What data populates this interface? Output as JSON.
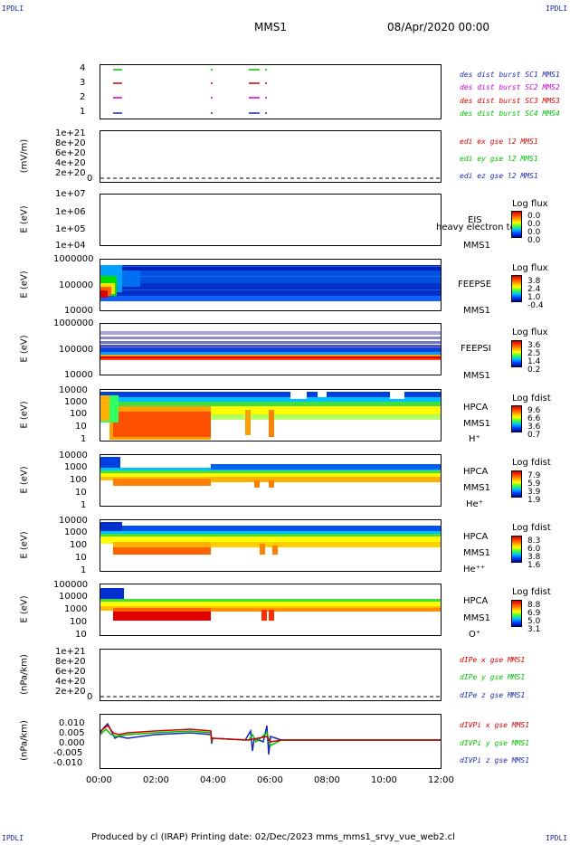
{
  "corners": {
    "label": "IPDLI"
  },
  "header": {
    "spacecraft": "MMS1",
    "date": "08/Apr/2020 00:00"
  },
  "footer": {
    "text": "Produced by cl (IRAP)   Printing date: 02/Dec/2023   mms_mms1_srvy_vue_web2.cl"
  },
  "colors": {
    "blue": "#1a2ab0",
    "magenta": "#d000d0",
    "red": "#d00000",
    "green": "#00c000",
    "navy": "#000080"
  },
  "panels": {
    "p1": {
      "yticks": [
        "4",
        "3",
        "2",
        "1"
      ],
      "legend": [
        "des dist burst SC1 MMS1",
        "des dist burst SC2 MMS2",
        "des dist burst SC3 MMS3",
        "des dist burst SC4 MMS4"
      ]
    },
    "p2": {
      "ylabel": "(mV/m)",
      "yticks": [
        "1e+21",
        "8e+20",
        "6e+20",
        "4e+20",
        "2e+20",
        "0"
      ],
      "legend": [
        "edi ex gse l2 MMS1",
        "edi ey gse l2 MMS1",
        "edi ez gse l2 MMS1"
      ]
    },
    "p3": {
      "ylabel": "E (eV)",
      "yticks": [
        "1e+07",
        "1e+06",
        "1e+05",
        "1e+04"
      ],
      "right": [
        "EIS",
        "MMS1"
      ],
      "overlay": "heavy electron tof",
      "cb_title": "Log flux",
      "cb_values": [
        "0.0",
        "0.0",
        "0.0",
        "0.0"
      ]
    },
    "p4": {
      "ylabel": "E (eV)",
      "yticks": [
        "1000000",
        "100000",
        "10000"
      ],
      "right": [
        "FEEPSE",
        "MMS1"
      ],
      "cb_title": "Log flux",
      "cb_values": [
        "3.8",
        "2.4",
        "1.0",
        "-0.4"
      ]
    },
    "p5": {
      "ylabel": "E (eV)",
      "yticks": [
        "1000000",
        "100000",
        "10000"
      ],
      "right": [
        "FEEPSI",
        "MMS1"
      ],
      "cb_title": "Log flux",
      "cb_values": [
        "3.6",
        "2.5",
        "1.4",
        "0.2"
      ]
    },
    "p6": {
      "ylabel": "E (eV)",
      "yticks": [
        "10000",
        "1000",
        "100",
        "10",
        "1"
      ],
      "right": [
        "HPCA",
        "MMS1",
        "H⁺"
      ],
      "cb_title": "Log fdist",
      "cb_values": [
        "9.6",
        "6.6",
        "3.6",
        "0.7"
      ]
    },
    "p7": {
      "ylabel": "E (eV)",
      "yticks": [
        "10000",
        "1000",
        "100",
        "10",
        "1"
      ],
      "right": [
        "HPCA",
        "MMS1",
        "He⁺"
      ],
      "cb_title": "Log fdist",
      "cb_values": [
        "7.9",
        "5.9",
        "3.9",
        "1.9"
      ]
    },
    "p8": {
      "ylabel": "E (eV)",
      "yticks": [
        "10000",
        "1000",
        "100",
        "10",
        "1"
      ],
      "right": [
        "HPCA",
        "MMS1",
        "He⁺⁺"
      ],
      "cb_title": "Log fdist",
      "cb_values": [
        "8.3",
        "6.0",
        "3.8",
        "1.6"
      ]
    },
    "p9": {
      "ylabel": "E (eV)",
      "yticks": [
        "100000",
        "10000",
        "1000",
        "100",
        "10"
      ],
      "right": [
        "HPCA",
        "MMS1",
        "O⁺"
      ],
      "cb_title": "Log fdist",
      "cb_values": [
        "8.8",
        "6.9",
        "5.0",
        "3.1"
      ]
    },
    "p10": {
      "ylabel": "(nPa/km)",
      "yticks": [
        "1e+21",
        "8e+20",
        "6e+20",
        "4e+20",
        "2e+20",
        "0"
      ],
      "legend": [
        "dIPe x gse MMS1",
        "dIPe y gse MMS1",
        "dIPe z gse MMS1"
      ]
    },
    "p11": {
      "ylabel": "(nPa/km)",
      "yticks": [
        "0.010",
        "0.005",
        "0.000",
        "-0.005",
        "-0.010"
      ],
      "legend": [
        "dIVPi x gse MMS1",
        "dIVPi y gse MMS1",
        "dIVPi z gse MMS1"
      ]
    }
  },
  "xaxis": {
    "ticks": [
      "00:00",
      "02:00",
      "04:00",
      "06:00",
      "08:00",
      "10:00",
      "12:00"
    ]
  },
  "chart_data": {
    "type": "heatmap",
    "title": "MMS1 08/Apr/2020 00:00",
    "x_range": [
      "00:00",
      "12:00"
    ],
    "panels": [
      {
        "id": "burst",
        "type": "line",
        "yticks": [
          1,
          2,
          3,
          4
        ]
      },
      {
        "id": "edi_e",
        "type": "line",
        "ylabel": "(mV/m)",
        "ylim": [
          0,
          1e+21
        ],
        "values_y": 0
      },
      {
        "id": "eis",
        "type": "heatmap",
        "ylabel": "E (eV)",
        "ylim": [
          10000.0,
          10000000.0
        ],
        "log": true
      },
      {
        "id": "feeps_e",
        "type": "heatmap",
        "ylabel": "E (eV)",
        "ylim": [
          10000.0,
          1000000.0
        ],
        "log": true,
        "colorbar": [
          3.8,
          2.4,
          1.0,
          -0.4
        ]
      },
      {
        "id": "feeps_i",
        "type": "heatmap",
        "ylabel": "E (eV)",
        "ylim": [
          10000.0,
          1000000.0
        ],
        "log": true,
        "colorbar": [
          3.6,
          2.5,
          1.4,
          0.2
        ]
      },
      {
        "id": "hpca_h",
        "type": "heatmap",
        "ylabel": "E (eV)",
        "ylim": [
          1,
          10000.0
        ],
        "log": true,
        "colorbar": [
          9.6,
          6.6,
          3.6,
          0.7
        ]
      },
      {
        "id": "hpca_he1",
        "type": "heatmap",
        "ylabel": "E (eV)",
        "ylim": [
          1,
          10000.0
        ],
        "log": true,
        "colorbar": [
          7.9,
          5.9,
          3.9,
          1.9
        ]
      },
      {
        "id": "hpca_he2",
        "type": "heatmap",
        "ylabel": "E (eV)",
        "ylim": [
          1,
          10000.0
        ],
        "log": true,
        "colorbar": [
          8.3,
          6.0,
          3.8,
          1.6
        ]
      },
      {
        "id": "hpca_o",
        "type": "heatmap",
        "ylabel": "E (eV)",
        "ylim": [
          10,
          100000.0
        ],
        "log": true,
        "colorbar": [
          8.8,
          6.9,
          5.0,
          3.1
        ]
      },
      {
        "id": "dipe",
        "type": "line",
        "ylabel": "(nPa/km)",
        "ylim": [
          0,
          1e+21
        ],
        "values_y": 0
      },
      {
        "id": "divpi",
        "type": "line",
        "ylabel": "(nPa/km)",
        "ylim": [
          -0.013,
          0.013
        ]
      }
    ]
  }
}
